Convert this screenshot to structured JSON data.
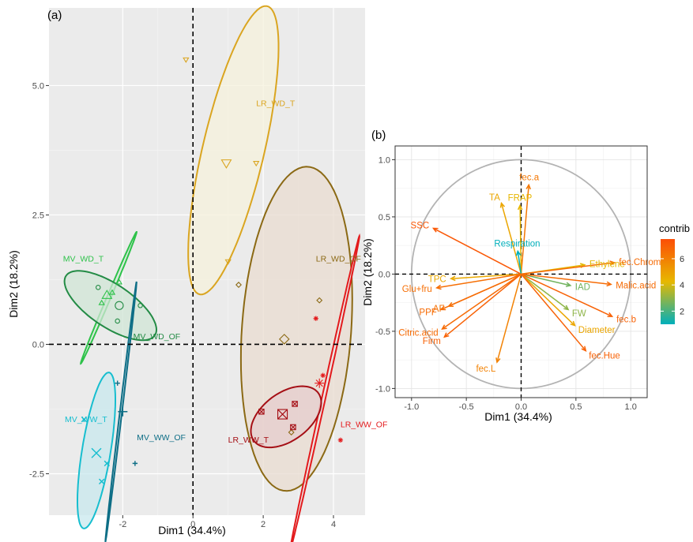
{
  "chart_data": [
    {
      "panel_label": "(a)",
      "type": "scatter",
      "xlabel": "Dim1 (34.4%)",
      "ylabel": "Dim2 (18.2%)",
      "xlim": [
        -4.1,
        4.9
      ],
      "ylim": [
        -3.3,
        6.5
      ],
      "xticks": [
        -2,
        0,
        2,
        4
      ],
      "xtick_labels": [
        "-2",
        "0",
        "2",
        "4"
      ],
      "yticks": [
        -2.5,
        0,
        2.5,
        5
      ],
      "ytick_labels": [
        "-2.5",
        "0.0",
        "2.5",
        "5.0"
      ],
      "grid": true,
      "background": "#ebebeb",
      "groups": [
        {
          "label": "LR_WD_T",
          "color": "#daa520",
          "fill": "#f5f1dc",
          "marker": "triangle-down",
          "centroid": [
            0.95,
            3.5
          ],
          "ellipse": {
            "cx": 1.15,
            "cy": 3.75,
            "rx": 2.95,
            "ry": 0.85,
            "angle": 70
          },
          "points": [
            [
              -0.2,
              5.5
            ],
            [
              1.8,
              3.5
            ],
            [
              1.0,
              1.6
            ]
          ],
          "label_pos": [
            1.8,
            4.6
          ]
        },
        {
          "label": "LR_WD_OF",
          "color": "#8b6914",
          "fill": "#e9dcd0",
          "marker": "diamond",
          "centroid": [
            2.6,
            0.1
          ],
          "ellipse": {
            "cx": 2.95,
            "cy": 0.3,
            "rx": 3.15,
            "ry": 1.55,
            "angle": 83
          },
          "points": [
            [
              1.3,
              1.15
            ],
            [
              3.6,
              0.85
            ],
            [
              2.8,
              -1.7
            ]
          ],
          "label_pos": [
            3.5,
            1.6
          ]
        },
        {
          "label": "LR_WW_OF",
          "color": "#e31a1c",
          "fill": "#ebe5e5",
          "marker": "asterisk",
          "centroid": [
            3.6,
            -0.75
          ],
          "ellipse": {
            "cx": 3.75,
            "cy": -0.95,
            "rx": 3.2,
            "ry": 0.05,
            "angle": 72
          },
          "points": [
            [
              3.5,
              0.5
            ],
            [
              3.7,
              -0.6
            ],
            [
              4.2,
              -1.85
            ]
          ],
          "label_pos": [
            4.2,
            -1.6
          ]
        },
        {
          "label": "LR_WW_T",
          "color": "#a50f15",
          "fill": "#e6cdcd",
          "marker": "square-x",
          "centroid": [
            2.55,
            -1.35
          ],
          "ellipse": {
            "cx": 2.65,
            "cy": -1.4,
            "rx": 1.05,
            "ry": 0.5,
            "angle": 20
          },
          "points": [
            [
              1.95,
              -1.3
            ],
            [
              2.9,
              -1.15
            ],
            [
              2.85,
              -1.6
            ]
          ],
          "label_pos": [
            1.0,
            -1.9
          ]
        },
        {
          "label": "MV_WD_T",
          "color": "#2ec24a",
          "fill": "#d5ead9",
          "marker": "triangle",
          "centroid": [
            -2.45,
            0.95
          ],
          "ellipse": {
            "cx": -2.4,
            "cy": 0.9,
            "rx": 1.5,
            "ry": 0.05,
            "angle": 58
          },
          "points": [
            [
              -2.6,
              0.8
            ],
            [
              -2.3,
              1.0
            ],
            [
              -2.1,
              1.2
            ]
          ],
          "label_pos": [
            -3.7,
            1.6
          ]
        },
        {
          "label": "MV_WD_OF",
          "color": "#238b45",
          "fill": "#d0e5d6",
          "marker": "circle",
          "centroid": [
            -2.1,
            0.75
          ],
          "ellipse": {
            "cx": -2.35,
            "cy": 0.75,
            "rx": 1.4,
            "ry": 0.45,
            "angle": -22
          },
          "points": [
            [
              -2.7,
              1.1
            ],
            [
              -2.15,
              0.45
            ],
            [
              -1.5,
              0.75
            ]
          ],
          "label_pos": [
            -1.7,
            0.1
          ]
        },
        {
          "label": "MV_WW_T",
          "color": "#17becf",
          "fill": "#c8e8ee",
          "marker": "x",
          "centroid": [
            -2.75,
            -2.1
          ],
          "ellipse": {
            "cx": -2.75,
            "cy": -2.05,
            "rx": 1.55,
            "ry": 0.4,
            "angle": 76
          },
          "points": [
            [
              -3.1,
              -1.45
            ],
            [
              -2.6,
              -2.65
            ],
            [
              -2.45,
              -2.3
            ]
          ],
          "label_pos": [
            -3.65,
            -1.5
          ]
        },
        {
          "label": "MV_WW_OF",
          "color": "#0e6e86",
          "fill": "#c6dde3",
          "marker": "plus",
          "centroid": [
            -2.0,
            -1.3
          ],
          "ellipse": {
            "cx": -2.05,
            "cy": -1.3,
            "rx": 2.55,
            "ry": 0.03,
            "angle": 80
          },
          "points": [
            [
              -2.15,
              -0.75
            ],
            [
              -1.65,
              -2.3
            ]
          ],
          "label_pos": [
            -1.6,
            -1.85
          ]
        }
      ]
    },
    {
      "panel_label": "(b)",
      "type": "biplot",
      "xlabel": "Dim1 (34.4%)",
      "ylabel": "Dim2 (18.2%)",
      "xlim": [
        -1.15,
        1.15
      ],
      "ylim": [
        -1.08,
        1.12
      ],
      "xticks": [
        -1,
        -0.5,
        0,
        0.5,
        1
      ],
      "xtick_labels": [
        "-1.0",
        "-0.5",
        "0.0",
        "0.5",
        "1.0"
      ],
      "yticks": [
        -1,
        -0.5,
        0,
        0.5,
        1
      ],
      "ytick_labels": [
        "-1.0",
        "-0.5",
        "0.0",
        "0.5",
        "1.0"
      ],
      "legend": {
        "title": "contrib",
        "ticks": [
          2,
          4,
          6
        ],
        "tick_labels": [
          "2",
          "4",
          "6"
        ],
        "range": [
          1,
          7.5
        ],
        "placement": "right",
        "colors": [
          "#00afbb",
          "#e7b800",
          "#fc4e07"
        ]
      },
      "vectors": [
        {
          "name": "fec.a",
          "x": 0.07,
          "y": 0.78,
          "contrib": 6.2
        },
        {
          "name": "TA",
          "x": -0.18,
          "y": 0.62,
          "contrib": 4.8
        },
        {
          "name": "FRAP",
          "x": -0.01,
          "y": 0.6,
          "contrib": 4.3
        },
        {
          "name": "SSC",
          "x": -0.8,
          "y": 0.4,
          "contrib": 7.2
        },
        {
          "name": "Respiration",
          "x": -0.03,
          "y": 0.2,
          "contrib": 1.0
        },
        {
          "name": "Ethylene",
          "x": 0.58,
          "y": 0.08,
          "contrib": 4.2
        },
        {
          "name": "fec.Chroma",
          "x": 0.85,
          "y": 0.1,
          "contrib": 6.6
        },
        {
          "name": "TPC",
          "x": -0.64,
          "y": -0.04,
          "contrib": 4.7
        },
        {
          "name": "Glu+fru",
          "x": -0.77,
          "y": -0.12,
          "contrib": 6.5
        },
        {
          "name": "IAD",
          "x": 0.45,
          "y": -0.1,
          "contrib": 2.6
        },
        {
          "name": "Malic.acid",
          "x": 0.82,
          "y": -0.09,
          "contrib": 6.6
        },
        {
          "name": "AF",
          "x": -0.66,
          "y": -0.28,
          "contrib": 6.4
        },
        {
          "name": "PPF",
          "x": -0.73,
          "y": -0.31,
          "contrib": 6.6
        },
        {
          "name": "FW",
          "x": 0.43,
          "y": -0.31,
          "contrib": 3.0
        },
        {
          "name": "fec.b",
          "x": 0.83,
          "y": -0.37,
          "contrib": 6.9
        },
        {
          "name": "Diameter",
          "x": 0.49,
          "y": -0.45,
          "contrib": 4.8
        },
        {
          "name": "Citric.acid",
          "x": -0.72,
          "y": -0.48,
          "contrib": 6.6
        },
        {
          "name": "Firm",
          "x": -0.7,
          "y": -0.55,
          "contrib": 6.9
        },
        {
          "name": "fec.L",
          "x": -0.22,
          "y": -0.77,
          "contrib": 5.9
        },
        {
          "name": "fec.Hue",
          "x": 0.59,
          "y": -0.67,
          "contrib": 6.9
        }
      ]
    }
  ]
}
